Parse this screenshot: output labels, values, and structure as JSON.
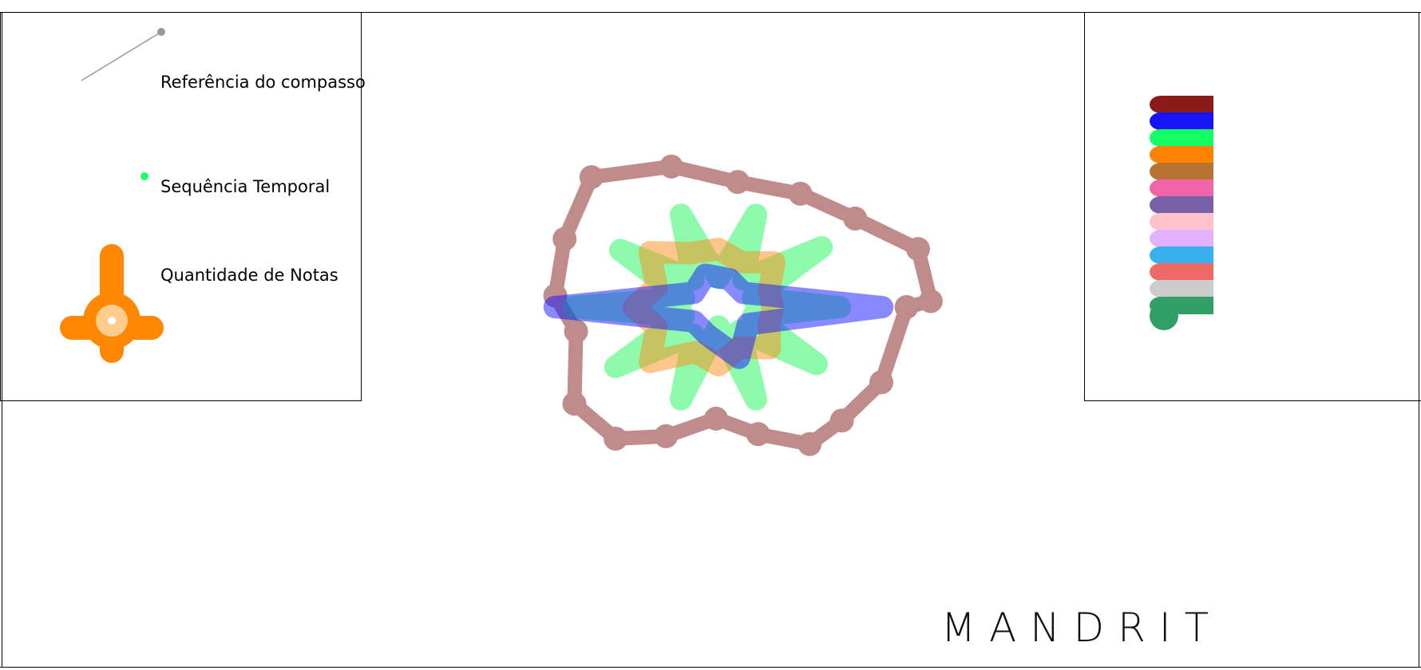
{
  "legend": {
    "measure_reference": "Referência do compasso",
    "time_sequence": "Sequência Temporal",
    "note_count": "Quantidade de Notas",
    "measure_reference_color": "#999999",
    "time_sequence_color": "#1cff6b",
    "note_count_color": "#ff8800",
    "note_count_center_color": "#ffcc8e"
  },
  "brand": {
    "name": "MANDRIT"
  },
  "palette": [
    "#8b1a1a",
    "#1414f5",
    "#14ff64",
    "#ff8200",
    "#b87333",
    "#f064a8",
    "#7a60a8",
    "#ffc2cc",
    "#e0b2ff",
    "#38b0ee",
    "#ee6a66",
    "#cccccc",
    "#32a066"
  ],
  "mandala": {
    "rings": [
      {
        "color": "#8b2d2d",
        "closed": true,
        "points": [
          [
            0,
            0.31
          ],
          [
            30,
            0.31
          ],
          [
            49,
            0.31
          ],
          [
            62,
            0.32
          ],
          [
            76,
            0.27
          ],
          [
            91,
            0.23
          ],
          [
            108,
            0.28
          ],
          [
            122,
            0.32
          ],
          [
            140,
            0.31
          ],
          [
            168,
            0.24
          ],
          [
            185,
            0.27
          ],
          [
            209,
            0.29
          ],
          [
            232,
            0.34
          ],
          [
            255,
            0.3
          ],
          [
            277,
            0.26
          ],
          [
            300,
            0.27
          ],
          [
            321,
            0.29
          ],
          [
            340,
            0.35
          ],
          [
            358,
            0.35
          ]
        ]
      },
      {
        "color": "#1cf55a",
        "closed": true,
        "points": [
          [
            0,
            0.2
          ],
          [
            18,
            0.06
          ],
          [
            36,
            0.2
          ],
          [
            54,
            0.06
          ],
          [
            72,
            0.2
          ],
          [
            90,
            0.04
          ],
          [
            108,
            0.2
          ],
          [
            126,
            0.07
          ],
          [
            144,
            0.21
          ],
          [
            162,
            0.06
          ],
          [
            180,
            0.24
          ],
          [
            198,
            0.06
          ],
          [
            216,
            0.2
          ],
          [
            234,
            0.07
          ],
          [
            252,
            0.2
          ],
          [
            270,
            0.06
          ],
          [
            288,
            0.2
          ],
          [
            306,
            0.07
          ],
          [
            324,
            0.21
          ],
          [
            342,
            0.06
          ]
        ]
      },
      {
        "color": "#ff8c1a",
        "closed": true,
        "points": [
          [
            0,
            0.09
          ],
          [
            22,
            0.09
          ],
          [
            45,
            0.12
          ],
          [
            68,
            0.09
          ],
          [
            90,
            0.12
          ],
          [
            112,
            0.1
          ],
          [
            135,
            0.16
          ],
          [
            158,
            0.11
          ],
          [
            180,
            0.14
          ],
          [
            202,
            0.11
          ],
          [
            225,
            0.16
          ],
          [
            248,
            0.12
          ],
          [
            270,
            0.12
          ],
          [
            292,
            0.1
          ],
          [
            315,
            0.13
          ],
          [
            338,
            0.09
          ]
        ]
      },
      {
        "color": "#1414ff",
        "closed": true,
        "points": [
          [
            0,
            0.27
          ],
          [
            36,
            0.06
          ],
          [
            72,
            0.11
          ],
          [
            108,
            0.06
          ],
          [
            144,
            0.05
          ],
          [
            180,
            0.27
          ],
          [
            216,
            0.05
          ],
          [
            252,
            0.07
          ],
          [
            288,
            0.06
          ],
          [
            324,
            0.05
          ]
        ]
      }
    ]
  }
}
